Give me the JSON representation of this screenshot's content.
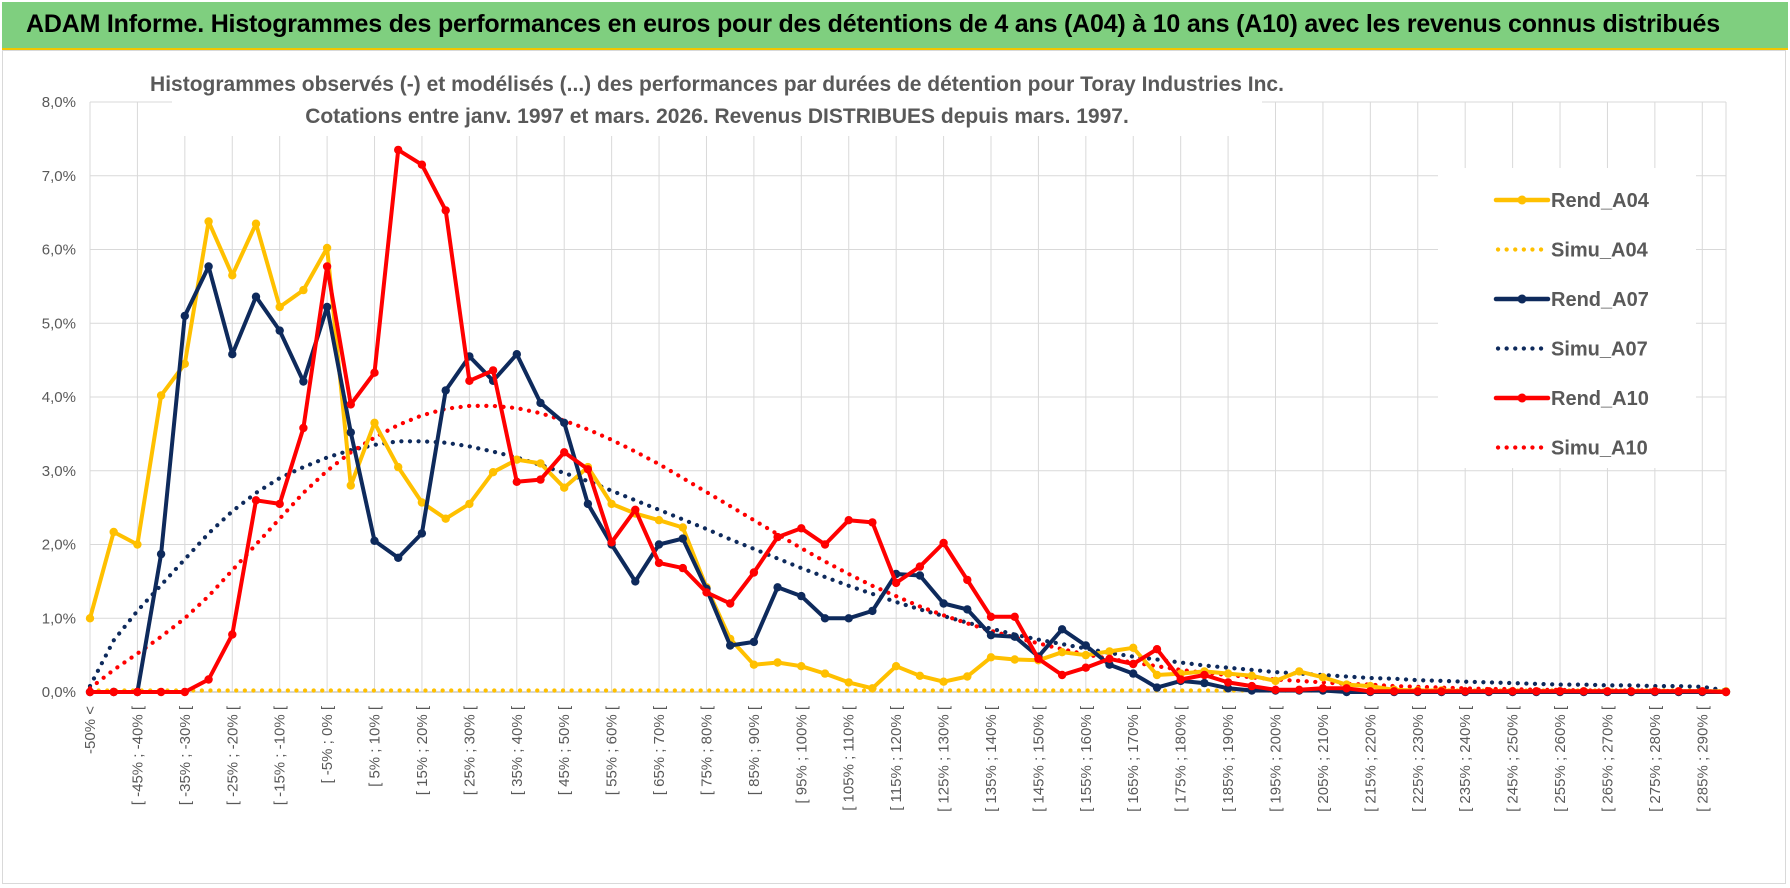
{
  "banner": {
    "title": "ADAM Informe. Histogrammes des performances en euros pour des détentions de 4 ans (A04) à 10 ans (A10) avec les revenus connus distribués"
  },
  "colors": {
    "banner_bg": "#7fcf7f",
    "banner_border": "#f2c500",
    "A04": "#ffc000",
    "A07": "#0e2a5c",
    "A10": "#ff0000"
  },
  "chart_data": {
    "type": "line",
    "title": "Histogrammes observés (-) et modélisés (...) des performances par durées de détention pour Toray Industries Inc.",
    "subtitle": "Cotations entre janv. 1997 et mars. 2026. Revenus DISTRIBUES depuis mars. 1997.",
    "ylim": [
      0,
      8
    ],
    "yticks": [
      "0,0%",
      "1,0%",
      "2,0%",
      "3,0%",
      "4,0%",
      "5,0%",
      "6,0%",
      "7,0%",
      "8,0%"
    ],
    "xticks": [
      "-50% <",
      "[ -45% ; -40% [",
      "[ -35% ; -30% [",
      "[ -25% ; -20% [",
      "[ -15% ; -10% [",
      "[ -5% ; 0% [",
      "[ 5% ; 10% [",
      "[ 15% ; 20% [",
      "[ 25% ; 30% [",
      "[ 35% ; 40% [",
      "[ 45% ; 50% [",
      "[ 55% ; 60% [",
      "[ 65% ; 70% [",
      "[ 75% ; 80% [",
      "[ 85% ; 90% [",
      "[ 95% ; 100% [",
      "[ 105% ; 110% [",
      "[ 115% ; 120% [",
      "[ 125% ; 130% [",
      "[ 135% ; 140% [",
      "[ 145% ; 150% [",
      "[ 155% ; 160% [",
      "[ 165% ; 170% [",
      "[ 175% ; 180% [",
      "[ 185% ; 190% [",
      "[ 195% ; 200% [",
      "[ 205% ; 210% [",
      "[ 215% ; 220% [",
      "[ 225% ; 230% [",
      "[ 235% ; 240% [",
      "[ 245% ; 250% [",
      "[ 255% ; 260% [",
      "[ 265% ; 270% [",
      "[ 275% ; 280% [",
      "[ 285% ; 290% ["
    ],
    "n_categories": 70,
    "legend_position": "right",
    "grid": true,
    "series": [
      {
        "name": "Rend_A04",
        "style": "solid",
        "color": "#ffc000",
        "values": [
          1.0,
          2.17,
          2.0,
          4.02,
          4.45,
          6.38,
          5.65,
          6.35,
          5.22,
          5.45,
          6.02,
          2.8,
          3.65,
          3.05,
          2.57,
          2.35,
          2.55,
          2.98,
          3.15,
          3.1,
          2.77,
          3.05,
          2.55,
          2.42,
          2.33,
          2.23,
          1.42,
          0.72,
          0.37,
          0.4,
          0.35,
          0.25,
          0.13,
          0.05,
          0.35,
          0.22,
          0.14,
          0.21,
          0.47,
          0.44,
          0.43,
          0.54,
          0.5,
          0.55,
          0.6,
          0.23,
          0.25,
          0.28,
          0.25,
          0.22,
          0.15,
          0.28,
          0.2,
          0.1,
          0.08,
          0.03,
          0.02,
          0.02,
          0.01,
          0.01,
          0.01,
          0.01,
          0.01,
          0.01,
          0.01,
          0.01,
          0.01,
          0.01,
          0.01,
          0.01
        ]
      },
      {
        "name": "Simu_A04",
        "style": "dotted",
        "color": "#ffc000",
        "values": [
          0.02,
          0.02,
          0.02,
          0.02,
          0.02,
          0.02,
          0.02,
          0.02,
          0.02,
          0.02,
          0.02,
          0.02,
          0.02,
          0.02,
          0.02,
          0.02,
          0.02,
          0.02,
          0.02,
          0.02,
          0.02,
          0.02,
          0.02,
          0.02,
          0.02,
          0.02,
          0.02,
          0.02,
          0.02,
          0.02,
          0.02,
          0.02,
          0.02,
          0.02,
          0.02,
          0.02,
          0.02,
          0.02,
          0.02,
          0.02,
          0.02,
          0.02,
          0.02,
          0.02,
          0.02,
          0.02,
          0.02,
          0.02,
          0.02,
          0.02,
          0.02,
          0.02,
          0.02,
          0.02,
          0.02,
          0.02,
          0.02,
          0.02,
          0.02,
          0.02,
          0.02,
          0.02,
          0.02,
          0.02,
          0.02,
          0.02,
          0.02,
          0.02,
          0.02,
          0.02
        ]
      },
      {
        "name": "Rend_A07",
        "style": "solid",
        "color": "#0e2a5c",
        "values": [
          0.0,
          0.0,
          0.0,
          1.87,
          5.1,
          5.77,
          4.58,
          5.36,
          4.9,
          4.21,
          5.22,
          3.52,
          2.05,
          1.82,
          2.15,
          4.09,
          4.55,
          4.22,
          4.58,
          3.92,
          3.65,
          2.55,
          2.0,
          1.5,
          2.0,
          2.08,
          1.4,
          0.63,
          0.68,
          1.42,
          1.3,
          1.0,
          1.0,
          1.1,
          1.6,
          1.58,
          1.2,
          1.12,
          0.77,
          0.75,
          0.48,
          0.85,
          0.63,
          0.37,
          0.25,
          0.06,
          0.15,
          0.12,
          0.05,
          0.02,
          0.02,
          0.02,
          0.02,
          0.0,
          0.0,
          0.0,
          0.0,
          0.0,
          0.0,
          0.0,
          0.0,
          0.0,
          0.0,
          0.0,
          0.0,
          0.0,
          0.0,
          0.0,
          0.0,
          0.0
        ]
      },
      {
        "name": "Simu_A07",
        "style": "dotted",
        "color": "#0e2a5c",
        "values": [
          0.08,
          0.7,
          1.1,
          1.45,
          1.8,
          2.15,
          2.45,
          2.7,
          2.9,
          3.05,
          3.18,
          3.28,
          3.35,
          3.4,
          3.4,
          3.38,
          3.33,
          3.26,
          3.18,
          3.08,
          2.97,
          2.86,
          2.73,
          2.6,
          2.47,
          2.34,
          2.21,
          2.07,
          1.94,
          1.81,
          1.68,
          1.56,
          1.44,
          1.33,
          1.22,
          1.12,
          1.03,
          0.94,
          0.86,
          0.78,
          0.71,
          0.65,
          0.59,
          0.53,
          0.48,
          0.44,
          0.4,
          0.36,
          0.33,
          0.3,
          0.27,
          0.25,
          0.23,
          0.21,
          0.19,
          0.18,
          0.16,
          0.15,
          0.14,
          0.13,
          0.12,
          0.11,
          0.1,
          0.1,
          0.09,
          0.09,
          0.08,
          0.08,
          0.07,
          0.02
        ]
      },
      {
        "name": "Rend_A10",
        "style": "solid",
        "color": "#ff0000",
        "values": [
          0.0,
          0.0,
          0.0,
          0.0,
          0.0,
          0.17,
          0.78,
          2.6,
          2.55,
          3.58,
          5.77,
          3.9,
          4.33,
          7.35,
          7.15,
          6.53,
          4.22,
          4.36,
          2.85,
          2.88,
          3.25,
          3.02,
          2.03,
          2.47,
          1.75,
          1.68,
          1.35,
          1.2,
          1.62,
          2.1,
          2.22,
          2.0,
          2.33,
          2.3,
          1.48,
          1.7,
          2.02,
          1.52,
          1.02,
          1.02,
          0.45,
          0.23,
          0.33,
          0.45,
          0.38,
          0.58,
          0.17,
          0.23,
          0.13,
          0.08,
          0.03,
          0.03,
          0.05,
          0.05,
          0.01,
          0.01,
          0.01,
          0.01,
          0.01,
          0.01,
          0.01,
          0.01,
          0.01,
          0.01,
          0.01,
          0.01,
          0.01,
          0.01,
          0.01,
          0.0
        ]
      },
      {
        "name": "Simu_A10",
        "style": "dotted",
        "color": "#ff0000",
        "values": [
          0.05,
          0.3,
          0.52,
          0.75,
          1.0,
          1.3,
          1.65,
          2.0,
          2.35,
          2.7,
          3.0,
          3.25,
          3.45,
          3.62,
          3.75,
          3.84,
          3.88,
          3.88,
          3.85,
          3.78,
          3.68,
          3.56,
          3.42,
          3.26,
          3.09,
          2.9,
          2.71,
          2.52,
          2.33,
          2.14,
          1.95,
          1.77,
          1.6,
          1.44,
          1.3,
          1.16,
          1.04,
          0.93,
          0.83,
          0.74,
          0.66,
          0.58,
          0.51,
          0.45,
          0.4,
          0.35,
          0.3,
          0.26,
          0.23,
          0.2,
          0.17,
          0.15,
          0.13,
          0.11,
          0.1,
          0.08,
          0.07,
          0.06,
          0.05,
          0.04,
          0.04,
          0.03,
          0.03,
          0.02,
          0.02,
          0.02,
          0.02,
          0.01,
          0.01,
          0.01
        ]
      }
    ]
  }
}
